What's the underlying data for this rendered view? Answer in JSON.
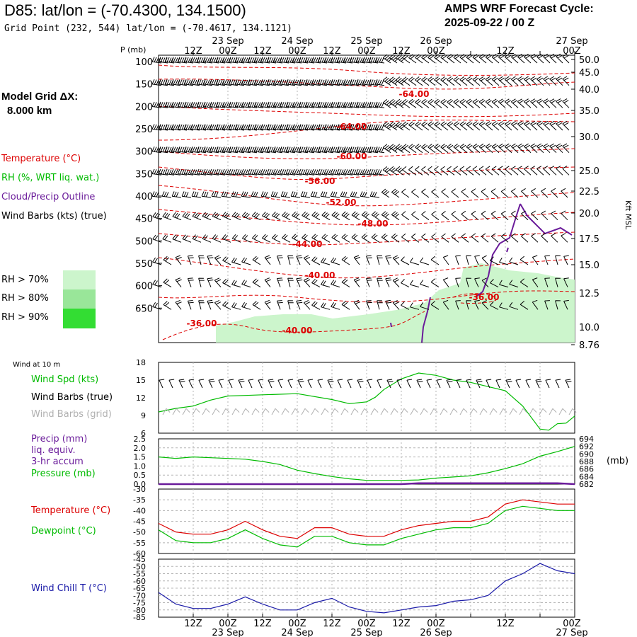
{
  "header": {
    "title": "D85:  lat/lon = (-70.4300, 134.1500)",
    "grid_point": "Grid Point (232, 544) lat/lon = (-70.4617, 134.1121)",
    "cycle_line1": "AMPS WRF Forecast Cycle:",
    "cycle_line2": "2025-09-22 / 00  Z"
  },
  "model": {
    "line1": "Model Grid ΔX:",
    "line2": "8.000 km"
  },
  "legend": {
    "temperature": "Temperature (°C)",
    "rh": "RH (%, WRT liq. wat.)",
    "cloud": "Cloud/Precip Outline",
    "wind": "Wind Barbs (kts) (true)"
  },
  "rh_legend": [
    {
      "label": "RH > 70%",
      "color": "#ccf5cc"
    },
    {
      "label": "RH > 80%",
      "color": "#99e699"
    },
    {
      "label": "RH > 90%",
      "color": "#33dd33"
    }
  ],
  "colors": {
    "temp": "#dd0000",
    "rh": "#00bb00",
    "cloud": "#6a1b9a",
    "barb": "#000000",
    "grid_barb": "#b0b0b0",
    "windchill": "#1a1aa8",
    "grid": "#b4b4b4"
  },
  "time_axis": {
    "ticks": [
      "12Z",
      "00Z",
      "12Z",
      "00Z",
      "12Z",
      "00Z",
      "12Z",
      "00Z",
      "12Z",
      "00Z"
    ],
    "days": [
      "23 Sep",
      "24 Sep",
      "25 Sep",
      "26 Sep",
      "27 Sep"
    ]
  },
  "chart_data": [
    {
      "type": "contour",
      "id": "cross-section",
      "ylabel": "P (mb)",
      "y2label": "Kft MSL",
      "pressure_ticks": [
        "100",
        "150",
        "200",
        "250",
        "300",
        "350",
        "400",
        "450",
        "500",
        "550",
        "600",
        "650"
      ],
      "height_ticks": [
        "50.0",
        "45.0",
        "40.0",
        "35.0",
        "30.0",
        "25.0",
        "22.5",
        "20.0",
        "17.5",
        "15.0",
        "12.5",
        "10.0",
        "8.76"
      ],
      "temperature_labels": [
        "-64.00",
        "-64.00",
        "-60.00",
        "-56.00",
        "-52.00",
        "-48.00",
        "-44.00",
        "-40.00",
        "-36.00",
        "-36.00",
        "-40.00"
      ]
    },
    {
      "type": "line",
      "id": "wind-10m",
      "title": "Wind at 10 m",
      "labels": {
        "spd": "Wind Spd (kts)",
        "barbs_true": "Wind Barbs (true)",
        "barbs_grid": "Wind Barbs (grid)"
      },
      "yticks": [
        "18",
        "15",
        "12",
        "9",
        "6"
      ],
      "ylim": [
        6,
        18
      ],
      "x_hours": [
        0,
        6,
        12,
        18,
        24,
        30,
        36,
        48,
        60,
        66,
        72,
        75,
        78,
        84,
        90,
        96,
        102,
        108,
        114,
        120,
        126,
        132,
        135,
        138,
        141,
        144
      ],
      "wind_speed": [
        9.6,
        10.2,
        10.6,
        11.6,
        12.3,
        12.4,
        12.5,
        12.7,
        11.7,
        11.0,
        11.3,
        12.1,
        13.4,
        15.2,
        16.2,
        15.8,
        15.0,
        14.6,
        13.9,
        13.2,
        10.6,
        6.7,
        6.5,
        7.6,
        7.7,
        8.9
      ]
    },
    {
      "type": "line",
      "id": "precip-pressure",
      "labels": {
        "precip": "Precip (mm)",
        "liq": "liq. equiv.",
        "accum": "3-hr accum",
        "pressure": "Pressure (mb)"
      },
      "y_unit": "(mb)",
      "yticks_left": [
        "2.5",
        "2.0",
        "1.5",
        "1.0",
        "0.5",
        "0.0"
      ],
      "yticks_right": [
        "694",
        "692",
        "690",
        "688",
        "686",
        "684",
        "682"
      ],
      "ylim_left": [
        0,
        2.5
      ],
      "ylim_right": [
        682,
        694
      ],
      "x_hours": [
        0,
        6,
        12,
        18,
        24,
        30,
        36,
        42,
        48,
        54,
        60,
        66,
        72,
        78,
        84,
        90,
        96,
        102,
        108,
        114,
        120,
        126,
        132,
        138,
        144
      ],
      "pressure": [
        689.2,
        688.8,
        689.2,
        689.0,
        688.8,
        688.6,
        688.0,
        687.2,
        685.7,
        684.8,
        684.0,
        683.4,
        683.0,
        683.0,
        683.0,
        683.1,
        683.6,
        683.9,
        684.2,
        685.0,
        686.1,
        687.4,
        689.4,
        690.6,
        692.0
      ],
      "precip_mm": [
        0,
        0,
        0,
        0,
        0,
        0,
        0,
        0,
        0,
        0,
        0,
        0,
        0,
        0,
        0,
        0.05,
        0.05,
        0.05,
        0.05,
        0.05,
        0.05,
        0.05,
        0.05,
        0.05,
        0
      ]
    },
    {
      "type": "line",
      "id": "temp-dewpoint",
      "labels": {
        "temp": "Temperature (°C)",
        "dew": "Dewpoint (°C)"
      },
      "yticks": [
        "-30",
        "-35",
        "-40",
        "-45",
        "-50",
        "-55",
        "-60"
      ],
      "ylim": [
        -60,
        -30
      ],
      "x_hours": [
        0,
        6,
        12,
        18,
        24,
        30,
        36,
        42,
        48,
        54,
        60,
        66,
        72,
        78,
        84,
        90,
        96,
        102,
        108,
        114,
        120,
        126,
        132,
        138,
        144
      ],
      "temperature": [
        -46,
        -50,
        -51,
        -51,
        -49,
        -45,
        -49,
        -52,
        -53,
        -48,
        -48,
        -51,
        -52,
        -52,
        -49,
        -47,
        -46,
        -45,
        -45,
        -43,
        -37,
        -35,
        -36,
        -37,
        -37
      ],
      "dewpoint": [
        -49,
        -54,
        -55,
        -55,
        -53,
        -49,
        -53,
        -56,
        -57,
        -52,
        -52,
        -55,
        -56,
        -56,
        -53,
        -51,
        -49,
        -48,
        -48,
        -46,
        -40,
        -38,
        -39,
        -40,
        -40
      ]
    },
    {
      "type": "line",
      "id": "wind-chill",
      "label": "Wind Chill T (°C)",
      "yticks": [
        "-45",
        "-50",
        "-55",
        "-60",
        "-65",
        "-70",
        "-75",
        "-80",
        "-85"
      ],
      "ylim": [
        -85,
        -45
      ],
      "x_hours": [
        0,
        6,
        12,
        18,
        24,
        30,
        36,
        42,
        48,
        54,
        60,
        66,
        72,
        78,
        84,
        90,
        96,
        102,
        108,
        114,
        120,
        126,
        132,
        138,
        144
      ],
      "wind_chill": [
        -68,
        -76,
        -79,
        -79,
        -76,
        -71,
        -76,
        -80,
        -80,
        -75,
        -72,
        -78,
        -81,
        -82,
        -80,
        -78,
        -77,
        -74,
        -73,
        -70,
        -60,
        -55,
        -48,
        -53,
        -55
      ]
    }
  ]
}
